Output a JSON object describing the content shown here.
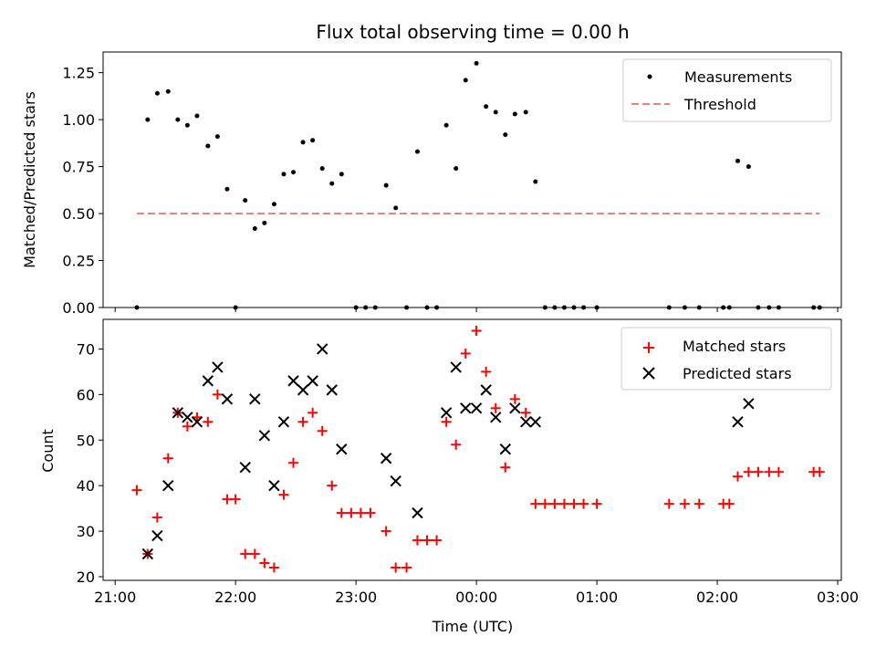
{
  "chart_data": [
    {
      "type": "scatter",
      "title": "Flux total observing time = 0.00 h",
      "xlabel": "",
      "ylabel": "Matched/Predicted stars",
      "xlim": [
        -0.1,
        6.03
      ],
      "ylim": [
        0,
        1.36
      ],
      "xticks": [
        0,
        1,
        2,
        3,
        4,
        5,
        6
      ],
      "yticks": [
        0.0,
        0.25,
        0.5,
        0.75,
        1.0,
        1.25
      ],
      "ytick_labels": [
        "0.00",
        "0.25",
        "0.50",
        "0.75",
        "1.00",
        "1.25"
      ],
      "legend_position": "top-right",
      "series": [
        {
          "name": "Measurements",
          "kind": "points",
          "color": "#000000",
          "points": [
            [
              0.18,
              0.0
            ],
            [
              0.27,
              1.0
            ],
            [
              0.35,
              1.14
            ],
            [
              0.44,
              1.15
            ],
            [
              0.52,
              1.0
            ],
            [
              0.6,
              0.97
            ],
            [
              0.68,
              1.02
            ],
            [
              0.77,
              0.86
            ],
            [
              0.85,
              0.91
            ],
            [
              0.93,
              0.63
            ],
            [
              1.0,
              0.0
            ],
            [
              1.08,
              0.57
            ],
            [
              1.16,
              0.42
            ],
            [
              1.24,
              0.45
            ],
            [
              1.32,
              0.55
            ],
            [
              1.4,
              0.71
            ],
            [
              1.48,
              0.72
            ],
            [
              1.56,
              0.88
            ],
            [
              1.64,
              0.89
            ],
            [
              1.72,
              0.74
            ],
            [
              1.8,
              0.66
            ],
            [
              1.88,
              0.71
            ],
            [
              2.0,
              0.0
            ],
            [
              2.08,
              0.0
            ],
            [
              2.16,
              0.0
            ],
            [
              2.25,
              0.65
            ],
            [
              2.33,
              0.53
            ],
            [
              2.42,
              0.0
            ],
            [
              2.51,
              0.83
            ],
            [
              2.59,
              0.0
            ],
            [
              2.67,
              0.0
            ],
            [
              2.75,
              0.97
            ],
            [
              2.83,
              0.74
            ],
            [
              2.91,
              1.21
            ],
            [
              3.0,
              1.3
            ],
            [
              3.08,
              1.07
            ],
            [
              3.16,
              1.04
            ],
            [
              3.24,
              0.92
            ],
            [
              3.32,
              1.03
            ],
            [
              3.41,
              1.04
            ],
            [
              3.49,
              0.67
            ],
            [
              3.57,
              0.0
            ],
            [
              3.65,
              0.0
            ],
            [
              3.73,
              0.0
            ],
            [
              3.81,
              0.0
            ],
            [
              3.89,
              0.0
            ],
            [
              4.0,
              0.0
            ],
            [
              4.6,
              0.0
            ],
            [
              4.73,
              0.0
            ],
            [
              4.85,
              0.0
            ],
            [
              5.05,
              0.0
            ],
            [
              5.1,
              0.0
            ],
            [
              5.17,
              0.78
            ],
            [
              5.26,
              0.75
            ],
            [
              5.34,
              0.0
            ],
            [
              5.43,
              0.0
            ],
            [
              5.51,
              0.0
            ],
            [
              5.8,
              0.0
            ],
            [
              5.85,
              0.0
            ]
          ]
        },
        {
          "name": "Threshold",
          "kind": "dashed-line",
          "color": "#f08080",
          "x": [
            0.18,
            5.85
          ],
          "y": [
            0.5,
            0.5
          ]
        }
      ]
    },
    {
      "type": "scatter",
      "title": "",
      "xlabel": "Time (UTC)",
      "ylabel": "Count",
      "xlim": [
        -0.1,
        6.03
      ],
      "ylim": [
        19.2,
        76.5
      ],
      "xticks": [
        0,
        1,
        2,
        3,
        4,
        5,
        6
      ],
      "xtick_labels": [
        "21:00",
        "22:00",
        "23:00",
        "00:00",
        "01:00",
        "02:00",
        "03:00"
      ],
      "yticks": [
        20,
        30,
        40,
        50,
        60,
        70
      ],
      "ytick_labels": [
        "20",
        "30",
        "40",
        "50",
        "60",
        "70"
      ],
      "legend_position": "top-right",
      "series": [
        {
          "name": "Matched stars",
          "kind": "plus",
          "color": "#ff0000",
          "points": [
            [
              0.18,
              39
            ],
            [
              0.27,
              25
            ],
            [
              0.35,
              33
            ],
            [
              0.44,
              46
            ],
            [
              0.52,
              56
            ],
            [
              0.6,
              53
            ],
            [
              0.68,
              55
            ],
            [
              0.77,
              54
            ],
            [
              0.85,
              60
            ],
            [
              0.93,
              37
            ],
            [
              1.0,
              37
            ],
            [
              1.08,
              25
            ],
            [
              1.16,
              25
            ],
            [
              1.24,
              23
            ],
            [
              1.32,
              22
            ],
            [
              1.4,
              38
            ],
            [
              1.48,
              45
            ],
            [
              1.56,
              54
            ],
            [
              1.64,
              56
            ],
            [
              1.72,
              52
            ],
            [
              1.8,
              40
            ],
            [
              1.88,
              34
            ],
            [
              1.96,
              34
            ],
            [
              2.04,
              34
            ],
            [
              2.12,
              34
            ],
            [
              2.25,
              30
            ],
            [
              2.33,
              22
            ],
            [
              2.42,
              22
            ],
            [
              2.51,
              28
            ],
            [
              2.59,
              28
            ],
            [
              2.67,
              28
            ],
            [
              2.75,
              54
            ],
            [
              2.83,
              49
            ],
            [
              2.91,
              69
            ],
            [
              3.0,
              74
            ],
            [
              3.08,
              65
            ],
            [
              3.16,
              57
            ],
            [
              3.24,
              44
            ],
            [
              3.32,
              59
            ],
            [
              3.41,
              56
            ],
            [
              3.49,
              36
            ],
            [
              3.57,
              36
            ],
            [
              3.65,
              36
            ],
            [
              3.73,
              36
            ],
            [
              3.81,
              36
            ],
            [
              3.89,
              36
            ],
            [
              4.0,
              36
            ],
            [
              4.6,
              36
            ],
            [
              4.73,
              36
            ],
            [
              4.85,
              36
            ],
            [
              5.05,
              36
            ],
            [
              5.1,
              36
            ],
            [
              5.17,
              42
            ],
            [
              5.26,
              43
            ],
            [
              5.34,
              43
            ],
            [
              5.43,
              43
            ],
            [
              5.51,
              43
            ],
            [
              5.8,
              43
            ],
            [
              5.85,
              43
            ]
          ]
        },
        {
          "name": "Predicted stars",
          "kind": "cross",
          "color": "#000000",
          "points": [
            [
              0.27,
              25
            ],
            [
              0.35,
              29
            ],
            [
              0.44,
              40
            ],
            [
              0.52,
              56
            ],
            [
              0.6,
              55
            ],
            [
              0.68,
              54
            ],
            [
              0.77,
              63
            ],
            [
              0.85,
              66
            ],
            [
              0.93,
              59
            ],
            [
              1.08,
              44
            ],
            [
              1.16,
              59
            ],
            [
              1.24,
              51
            ],
            [
              1.32,
              40
            ],
            [
              1.4,
              54
            ],
            [
              1.48,
              63
            ],
            [
              1.56,
              61
            ],
            [
              1.64,
              63
            ],
            [
              1.72,
              70
            ],
            [
              1.8,
              61
            ],
            [
              1.88,
              48
            ],
            [
              2.25,
              46
            ],
            [
              2.33,
              41
            ],
            [
              2.51,
              34
            ],
            [
              2.75,
              56
            ],
            [
              2.83,
              66
            ],
            [
              2.91,
              57
            ],
            [
              3.0,
              57
            ],
            [
              3.08,
              61
            ],
            [
              3.16,
              55
            ],
            [
              3.24,
              48
            ],
            [
              3.32,
              57
            ],
            [
              3.41,
              54
            ],
            [
              3.49,
              54
            ],
            [
              5.17,
              54
            ],
            [
              5.26,
              58
            ]
          ]
        }
      ]
    }
  ]
}
